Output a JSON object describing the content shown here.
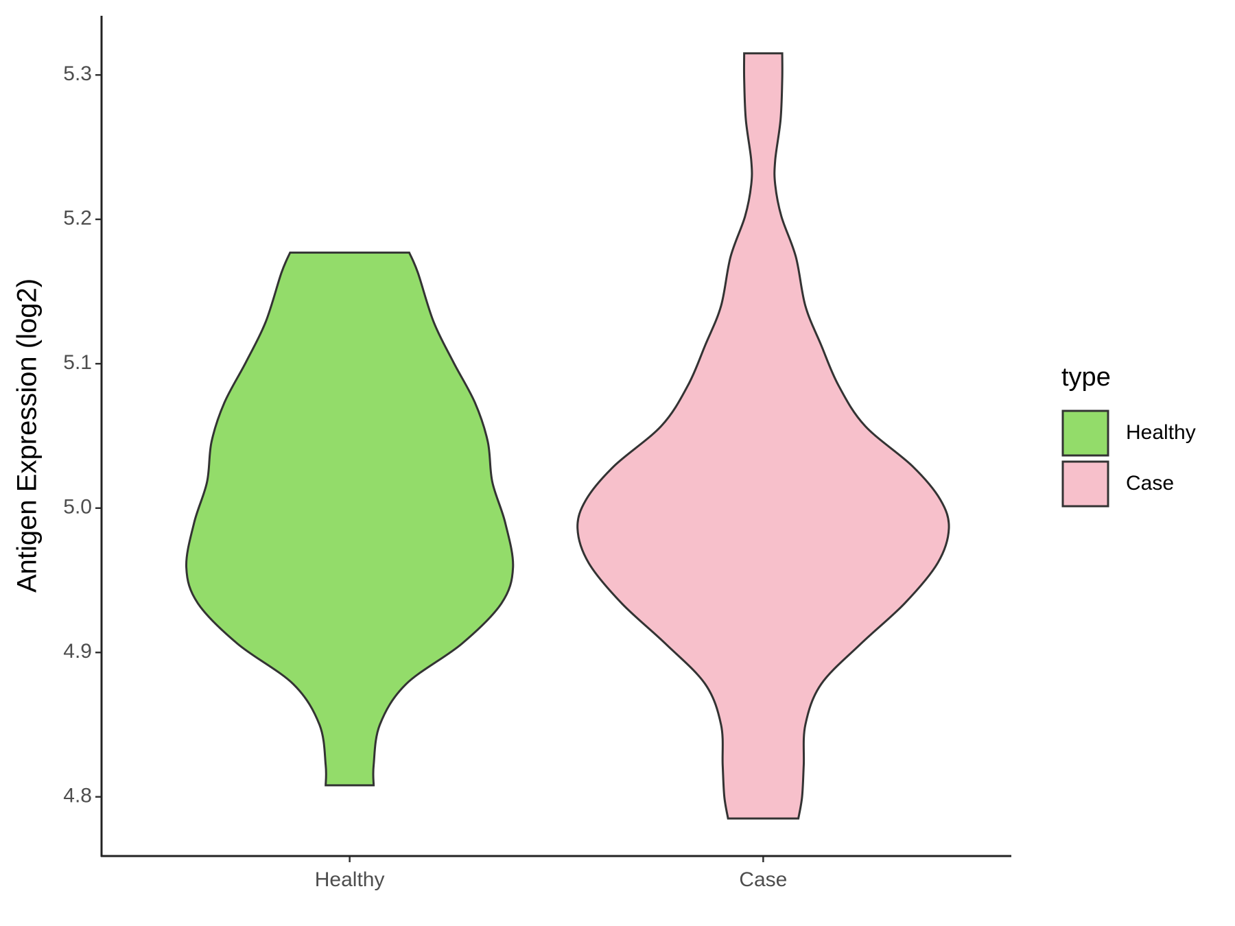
{
  "chart_data": {
    "type": "violin",
    "y_label": "Antigen Expression (log2)",
    "categories": [
      "Healthy",
      "Case"
    ],
    "legend_title": "type",
    "legend": "right",
    "ylim": [
      4.759,
      5.341
    ],
    "yticks": [
      4.8,
      4.9,
      {
        "value": 5.0,
        "label": "5.0"
      },
      5.1,
      5.2,
      5.3
    ],
    "series": [
      {
        "name": "Healthy",
        "color": "#93dc6a",
        "y": [
          5.177,
          5.163,
          5.129,
          5.101,
          5.073,
          5.046,
          5.018,
          4.99,
          4.959,
          4.934,
          4.906,
          4.878,
          4.85,
          4.822,
          4.808
        ],
        "width": [
          0.144,
          0.165,
          0.203,
          0.251,
          0.303,
          0.334,
          0.345,
          0.376,
          0.395,
          0.367,
          0.271,
          0.136,
          0.073,
          0.058,
          0.058
        ]
      },
      {
        "name": "Case",
        "color": "#f7c0cb",
        "y": [
          5.315,
          5.297,
          5.269,
          5.241,
          5.224,
          5.202,
          5.174,
          5.14,
          5.113,
          5.085,
          5.057,
          5.029,
          5.006,
          4.986,
          4.962,
          4.934,
          4.906,
          4.878,
          4.85,
          4.822,
          4.8,
          4.785
        ],
        "width": [
          0.046,
          0.046,
          0.042,
          0.029,
          0.029,
          0.044,
          0.079,
          0.102,
          0.14,
          0.182,
          0.246,
          0.361,
          0.428,
          0.449,
          0.422,
          0.342,
          0.236,
          0.14,
          0.102,
          0.098,
          0.094,
          0.085
        ]
      }
    ]
  }
}
